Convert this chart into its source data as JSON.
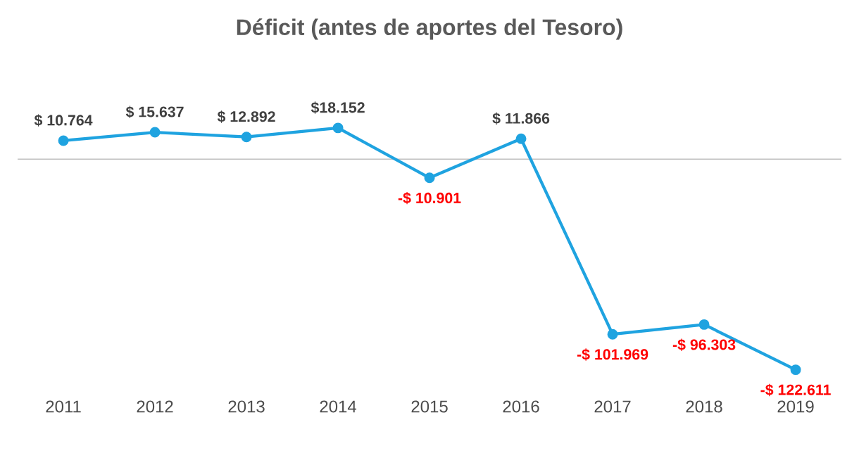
{
  "chart_data": {
    "type": "line",
    "title": "Déficit (antes de aportes del Tesoro)",
    "categories": [
      "2011",
      "2012",
      "2013",
      "2014",
      "2015",
      "2016",
      "2017",
      "2018",
      "2019"
    ],
    "values": [
      10764,
      15637,
      12892,
      18152,
      -10901,
      11866,
      -101969,
      -96303,
      -122611
    ],
    "value_labels": [
      "$ 10.764",
      "$ 15.637",
      "$ 12.892",
      "$18.152",
      "-$ 10.901",
      "$ 11.866",
      "-$ 101.969",
      "-$ 96.303",
      "-$ 122.611"
    ],
    "color": "#1fa3e0",
    "marker": "circle"
  }
}
